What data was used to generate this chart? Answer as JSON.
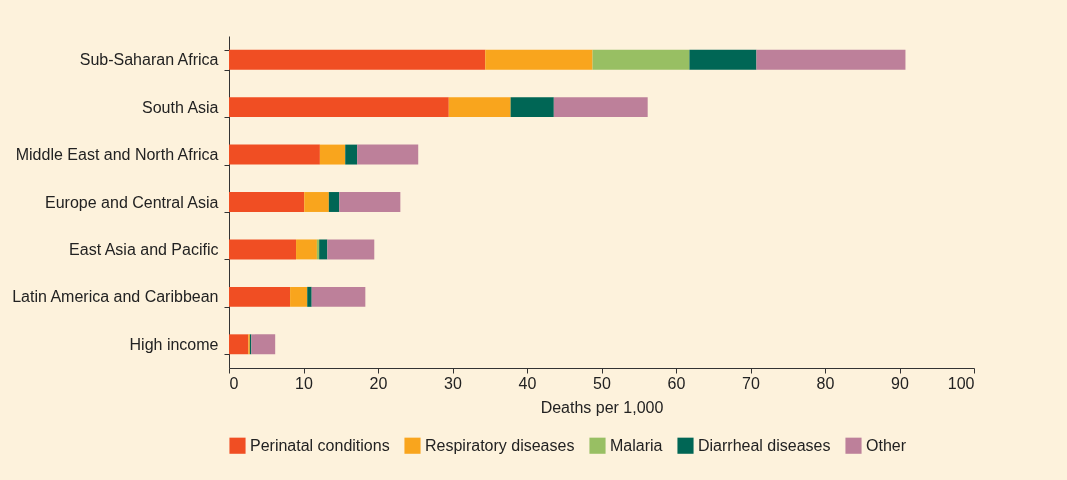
{
  "chart_data": {
    "type": "bar",
    "orientation": "horizontal",
    "stacked": true,
    "xlabel": "Deaths per 1,000",
    "categories": [
      "Sub-Saharan Africa",
      "South Asia",
      "Middle East and North Africa",
      "Europe and Central Asia",
      "East Asia and Pacific",
      "Latin America and Caribbean",
      "High income"
    ],
    "series": [
      {
        "name": "Perinatal conditions",
        "color": "#f04e23",
        "values": [
          34.4,
          29.5,
          12.2,
          10.1,
          9.0,
          8.2,
          2.6
        ]
      },
      {
        "name": "Respiratory diseases",
        "color": "#f9a51d",
        "values": [
          14.4,
          8.3,
          3.4,
          3.3,
          2.8,
          2.3,
          0.2
        ]
      },
      {
        "name": "Malaria",
        "color": "#98bf63",
        "values": [
          13.0,
          0,
          0,
          0,
          0.3,
          0,
          0
        ]
      },
      {
        "name": "Diarrheal diseases",
        "color": "#006655",
        "values": [
          9.0,
          5.8,
          1.6,
          1.4,
          1.1,
          0.6,
          0.2
        ]
      },
      {
        "name": "Other",
        "color": "#bd809a",
        "values": [
          20.0,
          12.6,
          8.2,
          8.2,
          6.3,
          7.2,
          3.2
        ]
      }
    ],
    "xlim": [
      0,
      100
    ],
    "xticks": [
      0,
      10,
      20,
      30,
      40,
      50,
      60,
      70,
      80,
      90,
      100
    ],
    "grid": false,
    "legend": "bottom"
  }
}
